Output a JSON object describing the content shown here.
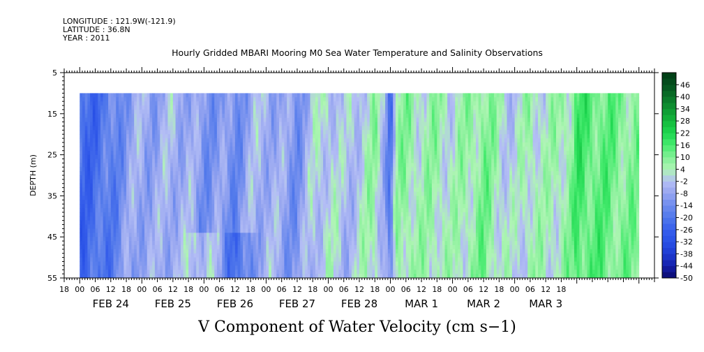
{
  "header": {
    "longitude": "LONGITUDE : 121.9W(-121.9)",
    "latitude": "LATITUDE : 36.8N",
    "year": "YEAR : 2011"
  },
  "chart_data": {
    "type": "heatmap",
    "title": "Hourly Gridded MBARI Mooring M0 Sea Water Temperature and Salinity Observations",
    "xlabel": "V Component of Water Velocity (cm s−1)",
    "ylabel": "DEPTH (m)",
    "y_ticks": [
      "5",
      "15",
      "25",
      "35",
      "45",
      "55"
    ],
    "ylim": [
      55,
      5
    ],
    "data_depth_range": [
      10,
      55
    ],
    "x_range_hours": [
      -6,
      222
    ],
    "data_x_range_hours": [
      0,
      216
    ],
    "x_hour_ticks": [
      "18",
      "00",
      "06",
      "12",
      "18",
      "00",
      "06",
      "12",
      "18",
      "00",
      "06",
      "12",
      "18",
      "00",
      "06",
      "12",
      "18",
      "00",
      "06",
      "12",
      "18",
      "00",
      "06",
      "12",
      "18",
      "00",
      "06",
      "12",
      "18",
      "00",
      "06",
      "12",
      "18"
    ],
    "x_date_labels": [
      "FEB 24",
      "FEB 25",
      "FEB 26",
      "FEB 27",
      "FEB 28",
      "MAR  1",
      "MAR  2",
      "MAR  3"
    ],
    "colorbar": {
      "labels": [
        "46",
        "40",
        "34",
        "28",
        "22",
        "16",
        "10",
        "4",
        "-2",
        "-8",
        "-14",
        "-20",
        "-26",
        "-32",
        "-38",
        "-44",
        "-50"
      ],
      "min": -50,
      "max": 52,
      "step": 3
    },
    "approx_values_by_period": [
      {
        "start": "FEB 24 00",
        "end": "FEB 25 00",
        "value_range": [
          -30,
          -18
        ]
      },
      {
        "start": "FEB 25 00",
        "end": "FEB 26 00",
        "value_range": [
          -14,
          2
        ]
      },
      {
        "start": "FEB 26 00",
        "end": "FEB 27 00",
        "value_range": [
          -20,
          4
        ]
      },
      {
        "start": "FEB 27 00",
        "end": "FEB 28 16",
        "value_range": [
          -16,
          8
        ]
      },
      {
        "start": "FEB 28 16",
        "end": "MAR  2 20",
        "value_range": [
          -8,
          16
        ]
      },
      {
        "start": "MAR  2 20",
        "end": "MAR  3 18",
        "value_range": [
          4,
          22
        ]
      }
    ]
  },
  "colors": {
    "blue_deep": "#2255e8",
    "blue_light": "#aab4f0",
    "green_light": "#a0f0a8",
    "green_bright": "#22ee55"
  }
}
